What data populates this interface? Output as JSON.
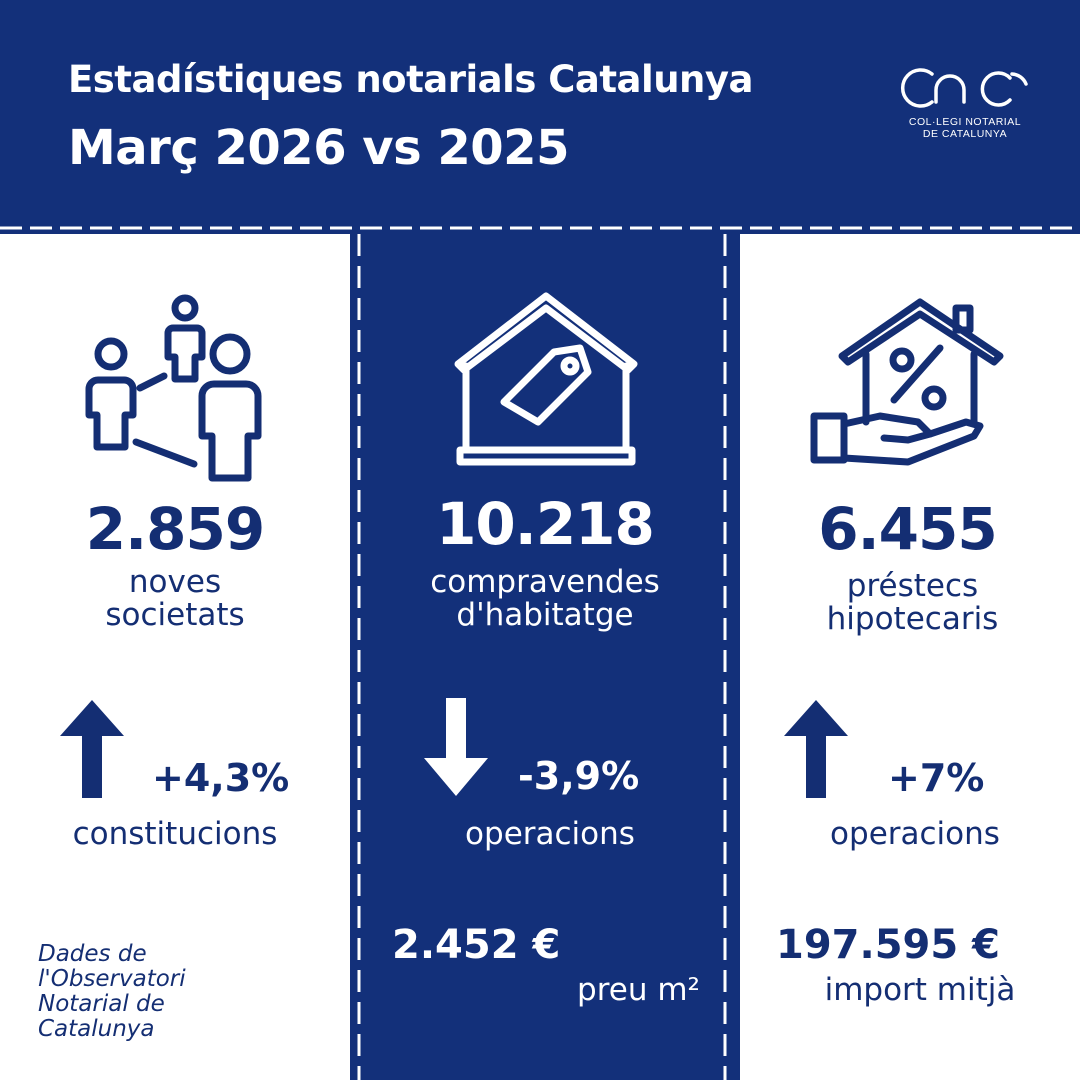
{
  "header": {
    "title_line1": "Estadístiques notarials Catalunya",
    "title_line2": "Març 2026 vs 2025",
    "logo_text_line1": "COL·LEGI NOTARIAL",
    "logo_text_line2": "DE CATALUNYA"
  },
  "colors": {
    "navy": "#13307a",
    "white": "#ffffff"
  },
  "columns": [
    {
      "icon": "people-network-icon",
      "value": "2.859",
      "label_line1": "noves",
      "label_line2": "societats",
      "trend": "up",
      "change": "+4,3%",
      "change_label": "constitucions"
    },
    {
      "icon": "house-price-tag-icon",
      "value": "10.218",
      "label_line1": "compravendes",
      "label_line2": "d'habitatge",
      "trend": "down",
      "change": "-3,9%",
      "change_label": "operacions",
      "extra_value": "2.452 €",
      "extra_label": "preu m²"
    },
    {
      "icon": "house-percent-hand-icon",
      "value": "6.455",
      "label_line1": "préstecs",
      "label_line2": "hipotecaris",
      "trend": "up",
      "change": "+7%",
      "change_label": "operacions",
      "extra_value": "197.595 €",
      "extra_label": "import mitjà"
    }
  ],
  "source_note": {
    "line1": "Dades de",
    "line2": "l'Observatori",
    "line3": "Notarial de",
    "line4": "Catalunya"
  }
}
